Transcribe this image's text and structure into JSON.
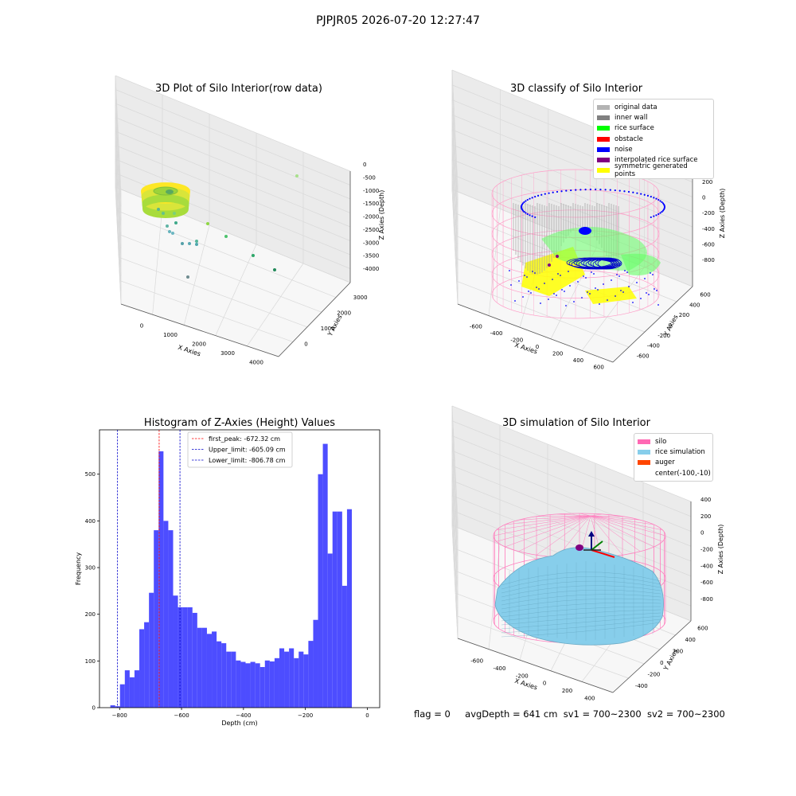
{
  "figure": {
    "suptitle": "PJPJR05 2026-07-20 12:27:47",
    "footer": {
      "flag": "flag = 0",
      "avg_depth": "avgDepth = 641 cm",
      "sv1": "sv1 = 700~2300",
      "sv2": "sv2 = 700~2300"
    }
  },
  "chart_data": [
    {
      "type": "scatter",
      "projection": "3d",
      "title": "3D Plot of Silo Interior(row data)",
      "xlabel": "X Axies",
      "ylabel": "Y Axies",
      "zlabel": "Z Axies (Depth)",
      "xticks": [
        "0",
        "1000",
        "2000",
        "3000",
        "4000"
      ],
      "yticks": [
        "0",
        "1000",
        "2000",
        "3000"
      ],
      "zticks": [
        "0",
        "-500",
        "-1000",
        "-1500",
        "-2000",
        "-2500",
        "-3000",
        "-3500",
        "-4000"
      ],
      "colormap": [
        "#2a8a8a",
        "#3fb27f",
        "#8fd744",
        "#fde725"
      ],
      "series": [
        {
          "x": [
            200,
            350,
            700,
            900
          ],
          "y": [
            600,
            800,
            700,
            650
          ],
          "z": [
            -1000,
            -1150,
            -1100,
            -1200
          ]
        },
        {
          "x": [
            3900
          ],
          "y": [
            3000
          ],
          "z": [
            -500
          ]
        },
        {
          "x": [
            1500,
            2000,
            3000,
            3600,
            800,
            600,
            500,
            1000,
            1200,
            300
          ],
          "y": [
            1200,
            800,
            600,
            200,
            400,
            200,
            600,
            700,
            900,
            300
          ],
          "z": [
            -2400,
            -2700,
            -3300,
            -3700,
            -2900,
            -2500,
            -2000,
            -2300,
            -2600,
            -3800
          ]
        }
      ]
    },
    {
      "type": "scatter",
      "projection": "3d",
      "title": "3D classify of Silo Interior",
      "xlabel": "X Axies",
      "ylabel": "Y Axies",
      "zlabel": "Z Axies (Depth)",
      "xticks": [
        "-600",
        "-400",
        "-200",
        "0",
        "200",
        "400",
        "600"
      ],
      "yticks": [
        "-600",
        "-400",
        "-200",
        "0",
        "200",
        "400",
        "600"
      ],
      "zticks": [
        "200",
        "0",
        "-200",
        "-400",
        "-600",
        "-800"
      ],
      "zticks_clipped_top": "00",
      "legend": {
        "location": "top-right",
        "entries": [
          {
            "label": "original data",
            "color": "#b3b3b3"
          },
          {
            "label": "inner wall",
            "color": "#808080"
          },
          {
            "label": "rice surface",
            "color": "#00ff00"
          },
          {
            "label": "obstacle",
            "color": "#ff0000"
          },
          {
            "label": "noise",
            "color": "#0000ff"
          },
          {
            "label": "interpolated rice surface",
            "color": "#800080"
          },
          {
            "label": "symmetric generated points",
            "color": "#ffff00"
          }
        ]
      },
      "silo_wireframe_color": "#ff9ec8"
    },
    {
      "type": "bar",
      "subtype": "histogram",
      "title": "Histogram of Z-Axies (Height) Values",
      "xlabel": "Depth (cm)",
      "ylabel": "Frequency",
      "xlim": [
        -865,
        40
      ],
      "ylim": [
        0,
        595
      ],
      "xticks": [
        -800,
        -600,
        -400,
        -200,
        0
      ],
      "yticks": [
        0,
        100,
        200,
        300,
        400,
        500
      ],
      "bar_color": "#4d4dff",
      "bin_start": -830,
      "bin_width": 15.6,
      "values": [
        5,
        3,
        50,
        80,
        65,
        80,
        168,
        183,
        246,
        380,
        549,
        400,
        380,
        240,
        215,
        215,
        215,
        203,
        171,
        171,
        158,
        163,
        142,
        138,
        120,
        120,
        101,
        98,
        95,
        98,
        95,
        87,
        101,
        99,
        106,
        127,
        120,
        127,
        106,
        120,
        114,
        143,
        188,
        500,
        565,
        330,
        420,
        420,
        261,
        425
      ],
      "reference_lines": [
        {
          "label": "first_peak: -672.32 cm",
          "value": -672.32,
          "color": "#ff0000"
        },
        {
          "label": "Upper_limit: -605.09 cm",
          "value": -605.09,
          "color": "#0000cc"
        },
        {
          "label": "Lower_limit: -806.78 cm",
          "value": -806.78,
          "color": "#0000cc"
        }
      ],
      "legend_location": "upper-center"
    },
    {
      "type": "area",
      "projection": "3d",
      "title": "3D simulation of Silo Interior",
      "xlabel": "X Axies",
      "ylabel": "Y Axies",
      "zlabel": "Z Axies (Depth)",
      "xticks": [
        "-600",
        "-400",
        "-200",
        "0",
        "200",
        "400"
      ],
      "yticks": [
        "-400",
        "-200",
        "0",
        "200",
        "400",
        "600"
      ],
      "zticks": [
        "400",
        "200",
        "0",
        "-200",
        "-400",
        "-600",
        "-800"
      ],
      "legend": {
        "location": "top-right",
        "entries": [
          {
            "label": "silo",
            "color": "#ff69b4"
          },
          {
            "label": "rice simulation",
            "color": "#87ceeb"
          },
          {
            "label": "auger",
            "color": "#ff4500"
          },
          {
            "label": "center(-100,-10)",
            "color": ""
          }
        ]
      },
      "silo_wireframe_color": "#ff7fbf",
      "surface_color": "#87ceeb",
      "axis_arrow_colors": [
        "#ff0000",
        "#008000",
        "#000080"
      ]
    }
  ]
}
